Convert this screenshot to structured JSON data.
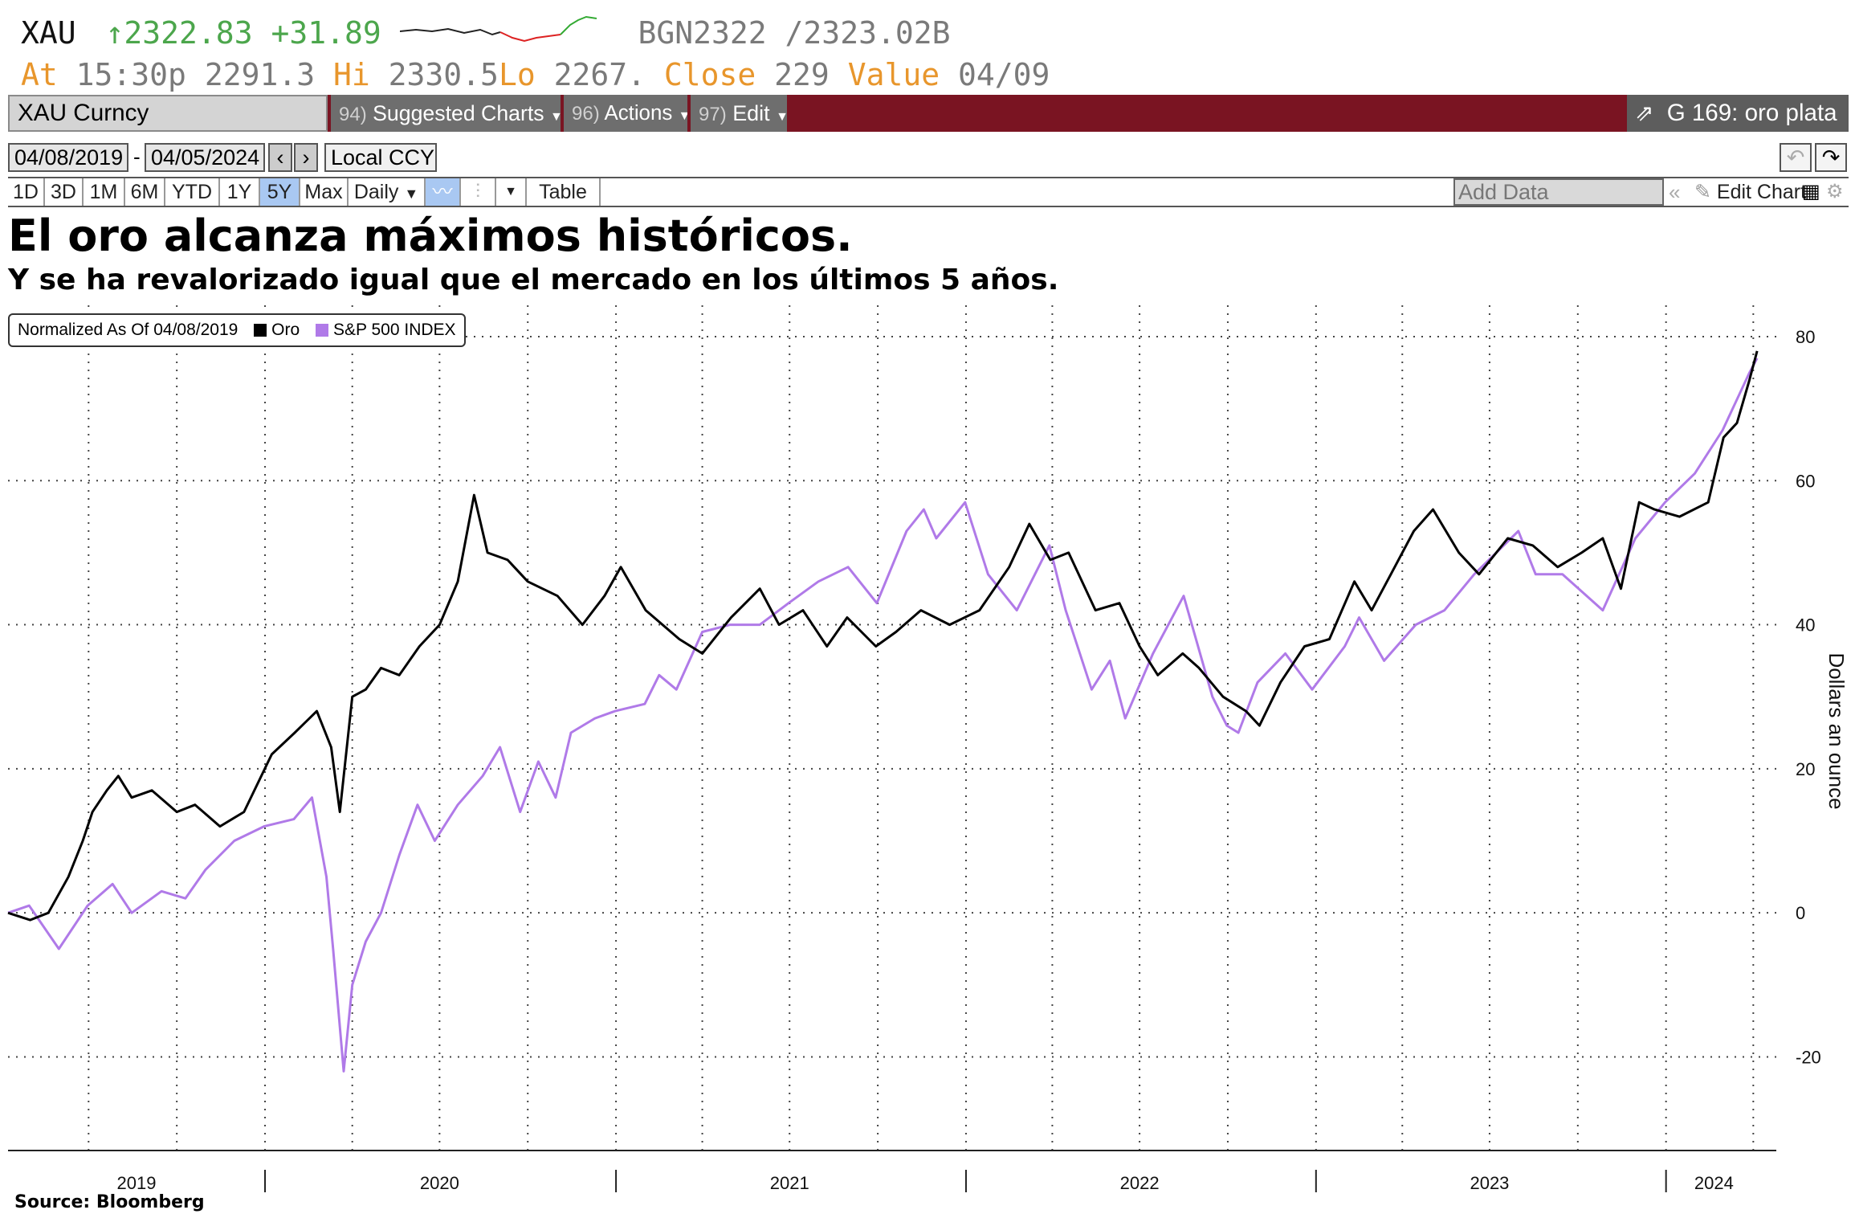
{
  "quote": {
    "ticker": "XAU",
    "arrow": "↑",
    "last": "2322.83",
    "change": "+31.89",
    "source_code": "BGN2322 /2323.02B",
    "at_label": "At",
    "at_value": "15:30p",
    "open_value": "2291.3",
    "hi_label": "Hi",
    "hi_value": "2330.5",
    "lo_label": "Lo",
    "lo_value": "2267.",
    "close_label": "Close",
    "close_value": "229",
    "value_label": "Value",
    "value_date": "04/09"
  },
  "toolbar": {
    "security": "XAU Curncy",
    "menus": [
      {
        "num": "94)",
        "label": "Suggested Charts"
      },
      {
        "num": "96)",
        "label": "Actions"
      },
      {
        "num": "97)",
        "label": "Edit"
      }
    ],
    "launch": "G 169: oro plata"
  },
  "range": {
    "start_date": "04/08/2019",
    "end_date": "04/05/2024",
    "currency": "Local CCY"
  },
  "periods": {
    "buttons": [
      "1D",
      "3D",
      "1M",
      "6M",
      "YTD",
      "1Y",
      "5Y",
      "Max"
    ],
    "selected": "5Y",
    "frequency": "Daily",
    "table_label": "Table",
    "add_data_placeholder": "Add Data",
    "edit_chart_label": "Edit Chart"
  },
  "colors": {
    "oro": "#000000",
    "sp500": "#b07ae8",
    "toolbar_bg": "#7a1422",
    "up_green": "#4ca64c",
    "label_orange": "#e8962c"
  },
  "chart_data": {
    "type": "line",
    "title": "El oro alcanza máximos históricos.",
    "subtitle": "Y se ha revalorizado igual que el mercado en los últimos 5 años.",
    "legend_header": "Normalized As Of 04/08/2019",
    "ylabel": "Dollars an ounce",
    "ylim": [
      -33,
      81
    ],
    "yticks": [
      -20,
      0,
      20,
      40,
      60,
      80
    ],
    "ytick_labels": [
      "-20",
      "0",
      "20",
      "40",
      "60",
      "80"
    ],
    "xlim": [
      "2019-04-08",
      "2024-04-25"
    ],
    "year_labels": [
      {
        "label": "2019",
        "mid": "2019-08-20"
      },
      {
        "label": "2020",
        "mid": "2020-07-01"
      },
      {
        "label": "2021",
        "mid": "2021-07-01"
      },
      {
        "label": "2022",
        "mid": "2022-07-01"
      },
      {
        "label": "2023",
        "mid": "2023-07-01"
      },
      {
        "label": "2024",
        "mid": "2024-02-20"
      }
    ],
    "year_separators": [
      "2020-01-01",
      "2021-01-01",
      "2022-01-01",
      "2023-01-01",
      "2024-01-01"
    ],
    "grid": true,
    "legend_position": "top-left",
    "source": "Source: Bloomberg",
    "series": [
      {
        "name": "Oro",
        "color": "#000000",
        "x": [
          "2019-04-08",
          "2019-05-01",
          "2019-05-20",
          "2019-06-10",
          "2019-06-25",
          "2019-07-05",
          "2019-07-20",
          "2019-08-01",
          "2019-08-15",
          "2019-09-05",
          "2019-10-01",
          "2019-10-20",
          "2019-11-15",
          "2019-12-10",
          "2020-01-08",
          "2020-02-01",
          "2020-02-24",
          "2020-03-10",
          "2020-03-19",
          "2020-04-01",
          "2020-04-15",
          "2020-05-01",
          "2020-05-20",
          "2020-06-10",
          "2020-07-01",
          "2020-07-20",
          "2020-08-06",
          "2020-08-20",
          "2020-09-10",
          "2020-10-01",
          "2020-11-01",
          "2020-11-27",
          "2020-12-20",
          "2021-01-06",
          "2021-02-01",
          "2021-03-08",
          "2021-04-01",
          "2021-05-01",
          "2021-05-31",
          "2021-06-20",
          "2021-07-15",
          "2021-08-09",
          "2021-08-30",
          "2021-09-29",
          "2021-10-20",
          "2021-11-15",
          "2021-12-15",
          "2022-01-15",
          "2022-02-15",
          "2022-03-08",
          "2022-03-30",
          "2022-04-18",
          "2022-05-16",
          "2022-06-10",
          "2022-07-01",
          "2022-07-20",
          "2022-08-15",
          "2022-09-01",
          "2022-09-26",
          "2022-10-20",
          "2022-11-03",
          "2022-11-25",
          "2022-12-20",
          "2023-01-15",
          "2023-02-10",
          "2023-02-28",
          "2023-03-20",
          "2023-04-13",
          "2023-05-03",
          "2023-05-30",
          "2023-06-20",
          "2023-07-20",
          "2023-08-15",
          "2023-09-10",
          "2023-10-05",
          "2023-10-27",
          "2023-11-15",
          "2023-12-04",
          "2023-12-20",
          "2024-01-15",
          "2024-02-14",
          "2024-03-01",
          "2024-03-15",
          "2024-03-28",
          "2024-04-05"
        ],
        "y": [
          0,
          -1,
          0,
          5,
          10,
          14,
          17,
          19,
          16,
          17,
          14,
          15,
          12,
          14,
          22,
          25,
          28,
          23,
          14,
          30,
          31,
          34,
          33,
          37,
          40,
          46,
          58,
          50,
          49,
          46,
          44,
          40,
          44,
          48,
          42,
          38,
          36,
          41,
          45,
          40,
          42,
          37,
          41,
          37,
          39,
          42,
          40,
          42,
          48,
          54,
          49,
          50,
          42,
          43,
          37,
          33,
          36,
          34,
          30,
          28,
          26,
          32,
          37,
          38,
          46,
          42,
          47,
          53,
          56,
          50,
          47,
          52,
          51,
          48,
          50,
          52,
          45,
          57,
          56,
          55,
          57,
          66,
          68,
          74,
          78
        ]
      },
      {
        "name": "S&P 500 INDEX",
        "color": "#b07ae8",
        "x": [
          "2019-04-08",
          "2019-04-30",
          "2019-05-31",
          "2019-06-30",
          "2019-07-26",
          "2019-08-15",
          "2019-09-15",
          "2019-10-10",
          "2019-10-31",
          "2019-11-30",
          "2019-12-31",
          "2020-01-31",
          "2020-02-19",
          "2020-03-05",
          "2020-03-12",
          "2020-03-23",
          "2020-04-01",
          "2020-04-15",
          "2020-05-01",
          "2020-05-20",
          "2020-06-08",
          "2020-06-26",
          "2020-07-20",
          "2020-08-15",
          "2020-09-02",
          "2020-09-23",
          "2020-10-12",
          "2020-10-30",
          "2020-11-15",
          "2020-12-10",
          "2020-12-31",
          "2021-01-31",
          "2021-02-15",
          "2021-03-05",
          "2021-04-01",
          "2021-04-30",
          "2021-05-31",
          "2021-06-30",
          "2021-07-31",
          "2021-08-31",
          "2021-09-30",
          "2021-10-31",
          "2021-11-18",
          "2021-12-01",
          "2021-12-31",
          "2022-01-24",
          "2022-02-23",
          "2022-03-29",
          "2022-04-15",
          "2022-05-12",
          "2022-05-31",
          "2022-06-16",
          "2022-07-15",
          "2022-08-16",
          "2022-09-15",
          "2022-09-30",
          "2022-10-12",
          "2022-11-01",
          "2022-11-30",
          "2022-12-28",
          "2023-01-31",
          "2023-02-15",
          "2023-03-13",
          "2023-04-15",
          "2023-05-15",
          "2023-06-15",
          "2023-07-31",
          "2023-08-18",
          "2023-09-15",
          "2023-10-27",
          "2023-11-30",
          "2023-12-31",
          "2024-01-31",
          "2024-02-29",
          "2024-03-28",
          "2024-04-05"
        ],
        "y": [
          0,
          1,
          -5,
          1,
          4,
          0,
          3,
          2,
          6,
          10,
          12,
          13,
          16,
          5,
          -5,
          -22,
          -10,
          -4,
          0,
          8,
          15,
          10,
          15,
          19,
          23,
          14,
          21,
          16,
          25,
          27,
          28,
          29,
          33,
          31,
          39,
          40,
          40,
          43,
          46,
          48,
          43,
          53,
          56,
          52,
          57,
          47,
          42,
          51,
          42,
          31,
          35,
          27,
          36,
          44,
          30,
          26,
          25,
          32,
          36,
          31,
          37,
          41,
          35,
          40,
          42,
          47,
          53,
          47,
          47,
          42,
          52,
          57,
          61,
          67,
          75,
          77
        ]
      }
    ]
  }
}
